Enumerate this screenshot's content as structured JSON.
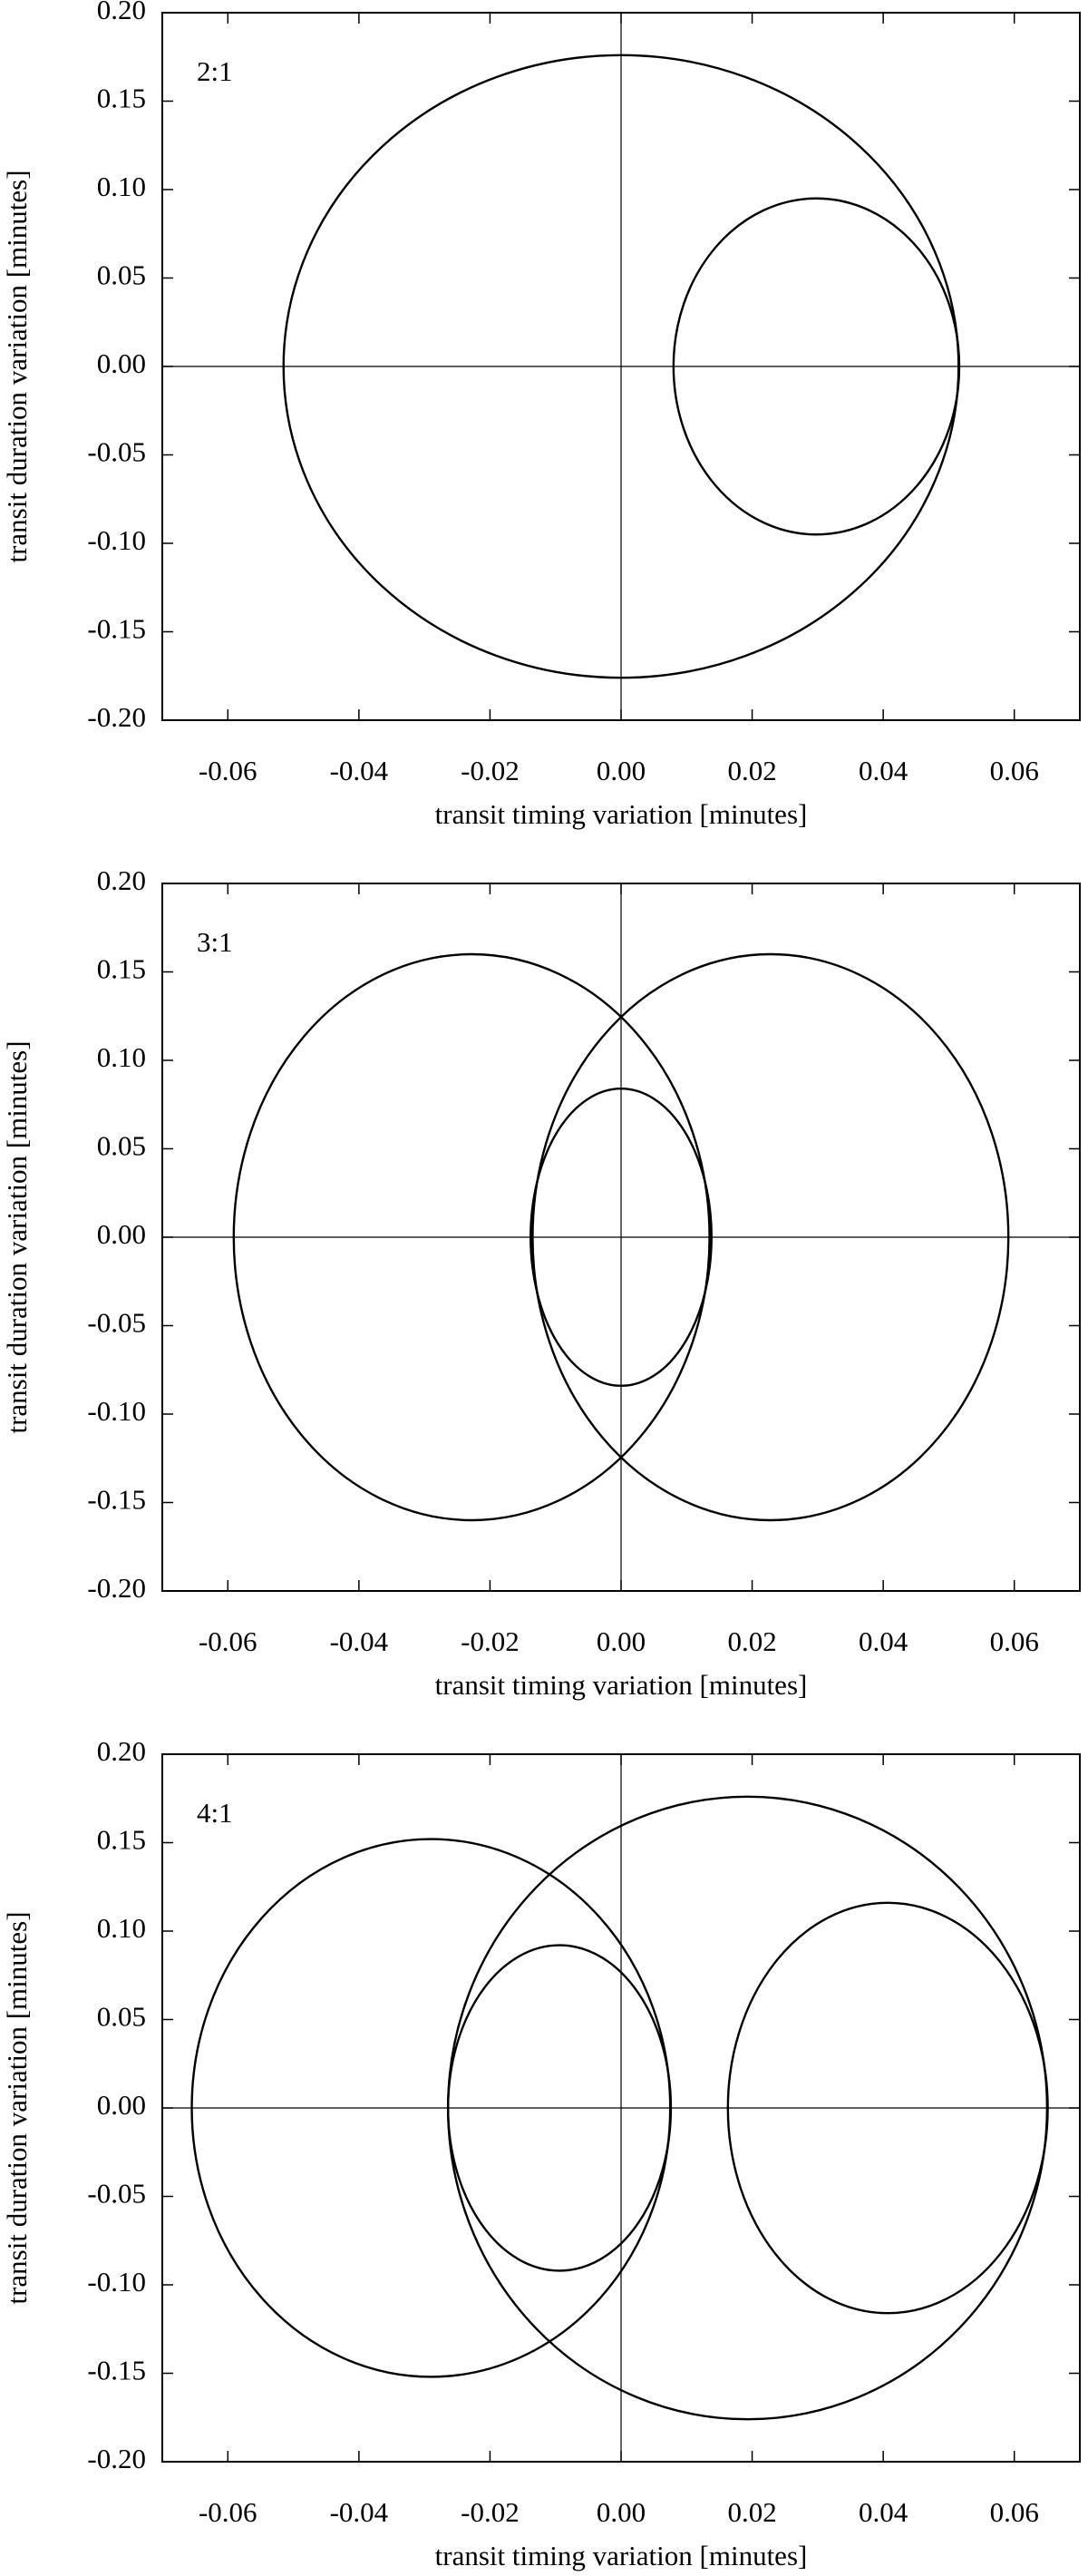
{
  "chart_data": [
    {
      "type": "ellipse",
      "annotation": "2:1",
      "xlabel": "transit timing variation [minutes]",
      "ylabel": "transit duration variation [minutes]",
      "color": "#000000",
      "xlim": [
        -0.07,
        0.07
      ],
      "ylim": [
        -0.2,
        0.2
      ],
      "xticks": [
        -0.06,
        -0.04,
        -0.02,
        {
          "value": 0,
          "label": "0.00"
        },
        0.02,
        0.04,
        0.06
      ],
      "yticks": [
        {
          "value": -0.2,
          "label": "-0.20"
        },
        -0.15,
        {
          "value": -0.1,
          "label": "-0.10"
        },
        -0.05,
        {
          "value": 0,
          "label": "0.00"
        },
        0.05,
        {
          "value": 0.1,
          "label": "0.10"
        },
        0.15,
        {
          "value": 0.2,
          "label": "0.20"
        }
      ],
      "ellipses": [
        {
          "cx": 0,
          "cy": 0,
          "rx": 0.0515,
          "ry": 0.176
        },
        {
          "cx": 0.0298,
          "cy": 0,
          "rx": 0.0218,
          "ry": 0.095
        }
      ]
    },
    {
      "type": "ellipse",
      "annotation": "3:1",
      "xlabel": "transit timing variation [minutes]",
      "ylabel": "transit duration variation [minutes]",
      "color": "#000000",
      "xlim": [
        -0.07,
        0.07
      ],
      "ylim": [
        -0.2,
        0.2
      ],
      "xticks": [
        -0.06,
        -0.04,
        -0.02,
        {
          "value": 0,
          "label": "0.00"
        },
        0.02,
        0.04,
        0.06
      ],
      "yticks": [
        {
          "value": -0.2,
          "label": "-0.20"
        },
        -0.15,
        {
          "value": -0.1,
          "label": "-0.10"
        },
        -0.05,
        {
          "value": 0,
          "label": "0.00"
        },
        0.05,
        {
          "value": 0.1,
          "label": "0.10"
        },
        0.15,
        {
          "value": 0.2,
          "label": "0.20"
        }
      ],
      "ellipses": [
        {
          "cx": -0.0228,
          "cy": 0,
          "rx": 0.0363,
          "ry": 0.16
        },
        {
          "cx": 0.0228,
          "cy": 0,
          "rx": 0.0363,
          "ry": 0.16
        },
        {
          "cx": 0,
          "cy": 0,
          "rx": 0.0138,
          "ry": 0.084
        }
      ]
    },
    {
      "type": "ellipse",
      "annotation": "4:1",
      "xlabel": "transit timing variation [minutes]",
      "ylabel": "transit duration variation [minutes]",
      "color": "#000000",
      "xlim": [
        -0.07,
        0.07
      ],
      "ylim": [
        -0.2,
        0.2
      ],
      "xticks": [
        -0.06,
        -0.04,
        -0.02,
        {
          "value": 0,
          "label": "0.00"
        },
        0.02,
        0.04,
        0.06
      ],
      "yticks": [
        {
          "value": -0.2,
          "label": "-0.20"
        },
        -0.15,
        {
          "value": -0.1,
          "label": "-0.10"
        },
        -0.05,
        {
          "value": 0,
          "label": "0.00"
        },
        0.05,
        {
          "value": 0.1,
          "label": "0.10"
        },
        0.15,
        {
          "value": 0.2,
          "label": "0.20"
        }
      ],
      "ellipses": [
        {
          "cx": -0.029,
          "cy": 0,
          "rx": 0.0365,
          "ry": 0.152
        },
        {
          "cx": 0.0193,
          "cy": 0,
          "rx": 0.0457,
          "ry": 0.176
        },
        {
          "cx": -0.0094,
          "cy": 0,
          "rx": 0.017,
          "ry": 0.092
        },
        {
          "cx": 0.0407,
          "cy": 0,
          "rx": 0.0244,
          "ry": 0.116
        }
      ]
    }
  ]
}
